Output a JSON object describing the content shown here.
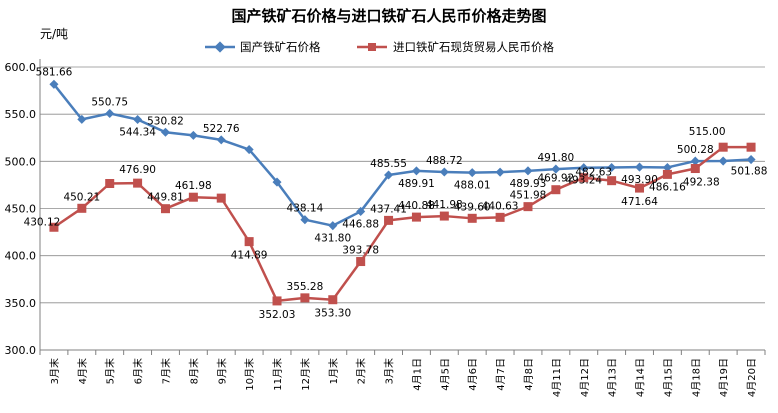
{
  "chart_data": {
    "type": "line",
    "title": "国产铁矿石价格与进口铁矿石人民币价格走势图",
    "ylabel": "元/吨",
    "ylim": [
      300,
      600
    ],
    "yticks": [
      "300.0",
      "350.0",
      "400.0",
      "450.0",
      "500.0",
      "550.0",
      "600.0"
    ],
    "grid": true,
    "legend_position": "top-right",
    "categories": [
      "3月末",
      "4月末",
      "5月末",
      "6月末",
      "7月末",
      "8月末",
      "9月末",
      "10月末",
      "11月末",
      "12月末",
      "1月末",
      "2月末",
      "3月末",
      "4月1日",
      "4月5日",
      "4月6日",
      "4月7日",
      "4月8日",
      "4月11日",
      "4月12日",
      "4月13日",
      "4月14日",
      "4月15日",
      "4月18日",
      "4月19日",
      "4月20日"
    ],
    "series": [
      {
        "name": "国产铁矿石价格",
        "color": "#4a7ebb",
        "marker": "diamond",
        "values": [
          581.66,
          544.5,
          550.75,
          544.34,
          530.82,
          527.5,
          522.76,
          512.5,
          478.0,
          438.14,
          431.8,
          446.88,
          485.55,
          489.91,
          488.72,
          488.01,
          488.5,
          489.93,
          491.8,
          493.24,
          493.5,
          493.9,
          493.5,
          500.28,
          500.3,
          501.88
        ],
        "labels": [
          "581.66",
          "",
          "550.75",
          "544.34",
          "530.82",
          "",
          "522.76",
          "",
          "",
          "438.14",
          "431.80",
          "446.88",
          "485.55",
          "489.91",
          "488.72",
          "488.01",
          "",
          "489.93",
          "491.80",
          "493.24",
          "",
          "493.90",
          "",
          "500.28",
          "",
          "501.88"
        ]
      },
      {
        "name": "进口铁矿石现货贸易人民币价格",
        "color": "#c0504d",
        "marker": "square",
        "values": [
          430.12,
          450.21,
          476.5,
          476.9,
          449.81,
          461.98,
          461.0,
          414.89,
          352.03,
          355.28,
          353.3,
          393.78,
          437.41,
          440.88,
          441.98,
          439.6,
          440.63,
          451.98,
          469.92,
          482.63,
          479.5,
          471.64,
          486.16,
          492.38,
          515.0,
          515.0
        ],
        "labels": [
          "430.12",
          "450.21",
          "",
          "476.90",
          "449.81",
          "461.98",
          "",
          "414.89",
          "352.03",
          "355.28",
          "353.30",
          "393.78",
          "437.41",
          "440.88",
          "441.98",
          "439.60",
          "440.63",
          "451.98",
          "469.92",
          "482.63",
          "",
          "471.64",
          "486.16",
          "492.38",
          "515.00",
          ""
        ]
      }
    ]
  }
}
